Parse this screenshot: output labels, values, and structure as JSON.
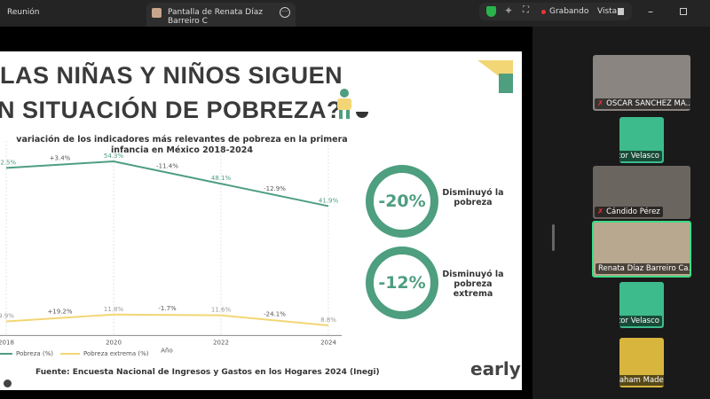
{
  "topbar": {
    "meeting": "Reunión",
    "share_title": "Pantalla de Renata Díaz Barreiro C",
    "recording": "Grabando",
    "view": "Vista"
  },
  "slide": {
    "title_line1": "LAS NIÑAS Y NIÑOS SIGUEN",
    "title_line2": "N SITUACIÓN DE POBREZA?",
    "chart_title": "variación de los indicadores más relevantes de pobreza en la primera infancia en México 2018-2024",
    "stat1": {
      "value": "-20%",
      "label": "Disminuyó la pobreza"
    },
    "stat2": {
      "value": "-12%",
      "label": "Disminuyó la pobreza extrema"
    },
    "source": "Fuente: Encuesta Nacional de Ingresos y Gastos en los Hogares 2024 (Inegi)",
    "logo": "earlyi",
    "accent": "#4e9e80"
  },
  "chart_data": {
    "type": "line",
    "xlabel": "Año",
    "x": [
      2018,
      2020,
      2022,
      2024
    ],
    "ylim": [
      6,
      60
    ],
    "grid": true,
    "legend": "bottom-left",
    "series": [
      {
        "name": "Pobreza (%)",
        "color": "#4e9e80",
        "values": [
          52.5,
          54.3,
          48.1,
          41.9
        ],
        "labels": [
          "52.5%",
          "54.3%",
          "48.1%",
          "41.9%"
        ],
        "changes": [
          "+3.4%",
          "-11.4%",
          "-12.9%"
        ]
      },
      {
        "name": "Pobreza extrema (%)",
        "color": "#f2d675",
        "values": [
          9.9,
          11.8,
          11.6,
          8.8
        ],
        "labels": [
          "9.9%",
          "11.8%",
          "11.6%",
          "8.8%"
        ],
        "changes": [
          "+19.2%",
          "-1.7%",
          "-24.1%"
        ]
      }
    ]
  },
  "participants": [
    {
      "name": "OSCAR SANCHEZ MA..."
    },
    {
      "name": "Víctor Velasco"
    },
    {
      "name": "Cándido Pérez"
    },
    {
      "name": "Renata Díaz Barreiro Ca..."
    },
    {
      "name": "Víctor Velasco"
    },
    {
      "name": "Abraham Madero"
    }
  ]
}
